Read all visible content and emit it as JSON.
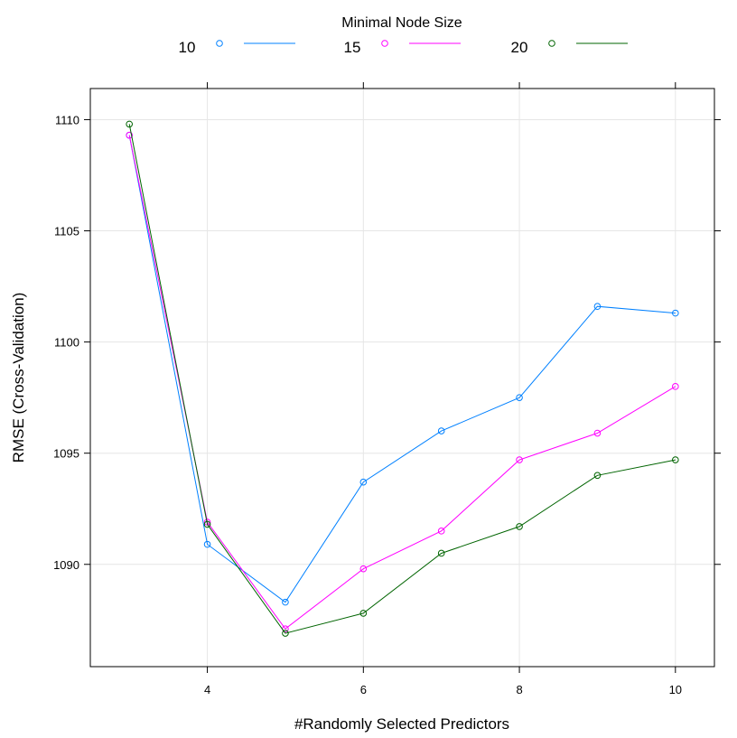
{
  "chart_data": {
    "type": "line",
    "legend_title": "Minimal Node Size",
    "legend_position": "top",
    "xlabel": "#Randomly Selected Predictors",
    "ylabel": "RMSE (Cross-Validation)",
    "xlim": [
      2.5,
      10.5
    ],
    "ylim": [
      1085.4,
      1111.4
    ],
    "x_ticks": [
      4,
      6,
      8,
      10
    ],
    "y_ticks": [
      1090,
      1095,
      1100,
      1105,
      1110
    ],
    "grid": true,
    "x": [
      3,
      4,
      5,
      6,
      7,
      8,
      9,
      10
    ],
    "series": [
      {
        "name": "10",
        "color": "#0080ff",
        "values": [
          1109.3,
          1090.9,
          1088.3,
          1093.7,
          1096.0,
          1097.5,
          1101.6,
          1101.3
        ]
      },
      {
        "name": "15",
        "color": "#ff00ff",
        "values": [
          1109.3,
          1091.9,
          1087.1,
          1089.8,
          1091.5,
          1094.7,
          1095.9,
          1098.0
        ]
      },
      {
        "name": "20",
        "color": "#006400",
        "values": [
          1109.8,
          1091.8,
          1086.9,
          1087.8,
          1090.5,
          1091.7,
          1094.0,
          1094.7
        ]
      }
    ]
  }
}
